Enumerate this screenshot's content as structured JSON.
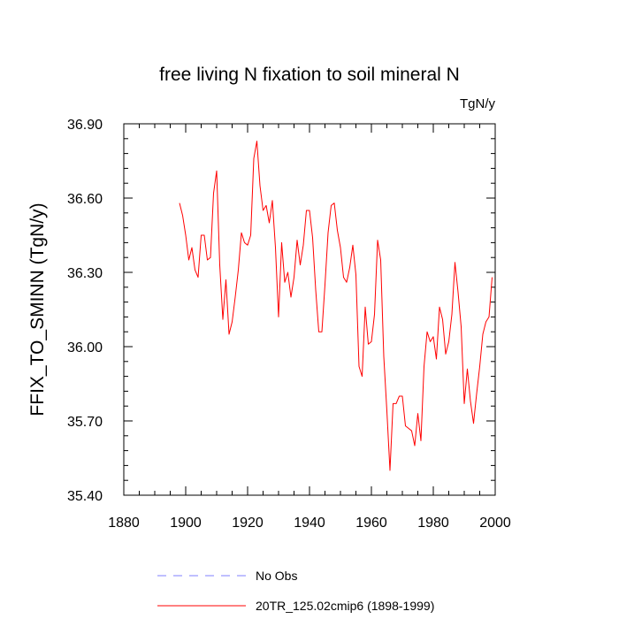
{
  "chart_data": {
    "type": "line",
    "title": "free living N fixation to soil mineral N",
    "units": "TgN/y",
    "ylabel": "FFIX_TO_SMINN  (TgN/y)",
    "xlabel": "",
    "xlim": [
      1880,
      2000
    ],
    "ylim": [
      35.4,
      36.9
    ],
    "xticks": [
      1880,
      1900,
      1920,
      1940,
      1960,
      1980,
      2000
    ],
    "xtick_labels": [
      "1880",
      "1900",
      "1920",
      "1940",
      "1960",
      "1980",
      "2000"
    ],
    "yticks": [
      35.4,
      35.7,
      36.0,
      36.3,
      36.6,
      36.9
    ],
    "ytick_labels": [
      "35.40",
      "35.70",
      "36.00",
      "36.30",
      "36.60",
      "36.90"
    ],
    "series": [
      {
        "name": "20TR_125.02cmip6 (1898-1999)",
        "color": "#ff0000",
        "x": [
          1898,
          1899,
          1900,
          1901,
          1902,
          1903,
          1904,
          1905,
          1906,
          1907,
          1908,
          1909,
          1910,
          1911,
          1912,
          1913,
          1914,
          1915,
          1916,
          1917,
          1918,
          1919,
          1920,
          1921,
          1922,
          1923,
          1924,
          1925,
          1926,
          1927,
          1928,
          1929,
          1930,
          1931,
          1932,
          1933,
          1934,
          1935,
          1936,
          1937,
          1938,
          1939,
          1940,
          1941,
          1942,
          1943,
          1944,
          1945,
          1946,
          1947,
          1948,
          1949,
          1950,
          1951,
          1952,
          1953,
          1954,
          1955,
          1956,
          1957,
          1958,
          1959,
          1960,
          1961,
          1962,
          1963,
          1964,
          1965,
          1966,
          1967,
          1968,
          1969,
          1970,
          1971,
          1972,
          1973,
          1974,
          1975,
          1976,
          1977,
          1978,
          1979,
          1980,
          1981,
          1982,
          1983,
          1984,
          1985,
          1986,
          1987,
          1988,
          1989,
          1990,
          1991,
          1992,
          1993,
          1994,
          1995,
          1996,
          1997,
          1998,
          1999
        ],
        "values": [
          36.58,
          36.53,
          36.45,
          36.35,
          36.4,
          36.31,
          36.28,
          36.45,
          36.45,
          36.35,
          36.36,
          36.62,
          36.71,
          36.33,
          36.11,
          36.27,
          36.05,
          36.1,
          36.2,
          36.31,
          36.46,
          36.42,
          36.41,
          36.45,
          36.76,
          36.83,
          36.65,
          36.55,
          36.57,
          36.5,
          36.59,
          36.4,
          36.12,
          36.42,
          36.26,
          36.3,
          36.2,
          36.28,
          36.43,
          36.33,
          36.41,
          36.55,
          36.55,
          36.44,
          36.23,
          36.06,
          36.06,
          36.25,
          36.46,
          36.57,
          36.58,
          36.47,
          36.4,
          36.28,
          36.26,
          36.32,
          36.41,
          36.29,
          35.92,
          35.88,
          36.16,
          36.01,
          36.02,
          36.13,
          36.43,
          36.35,
          35.96,
          35.74,
          35.5,
          35.77,
          35.77,
          35.8,
          35.8,
          35.68,
          35.67,
          35.66,
          35.6,
          35.73,
          35.62,
          35.92,
          36.06,
          36.02,
          36.04,
          35.95,
          36.16,
          36.11,
          35.97,
          36.02,
          36.13,
          36.34,
          36.22,
          36.08,
          35.77,
          35.91,
          35.78,
          35.69,
          35.81,
          35.92,
          36.05,
          36.1,
          36.12,
          36.28
        ]
      }
    ],
    "legend": {
      "placement": "bottom",
      "entries": [
        {
          "label": "No Obs",
          "color": "#8080ff",
          "style": "dashed"
        },
        {
          "label": "20TR_125.02cmip6 (1898-1999)",
          "color": "#ff0000",
          "style": "solid"
        }
      ]
    }
  }
}
